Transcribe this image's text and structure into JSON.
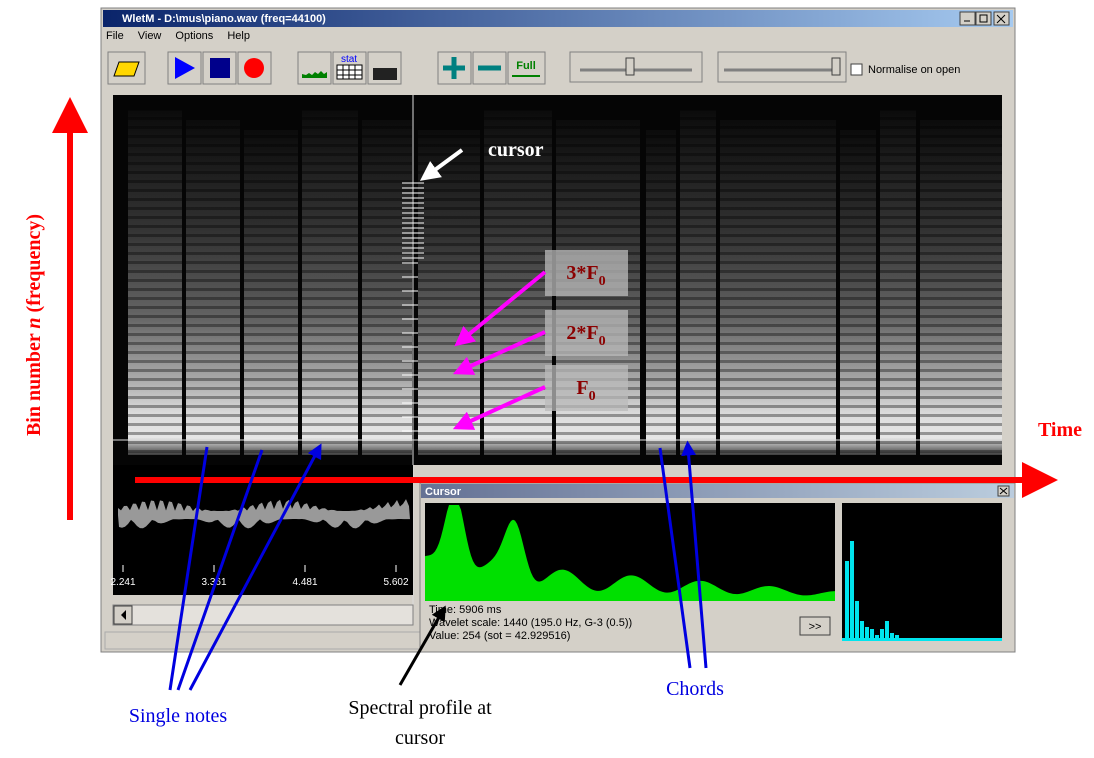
{
  "window": {
    "title": "WletM - D:\\mus\\piano.wav (freq=44100)",
    "menu": [
      "File",
      "View",
      "Options",
      "Help"
    ],
    "toolbar": {
      "stat_button": "stat",
      "full_button": "Full",
      "normalise_checkbox": "Normalise on open"
    }
  },
  "waveform": {
    "time_labels": [
      "2.241",
      "3.361",
      "4.481",
      "5.602"
    ]
  },
  "cursor_panel": {
    "title": "Cursor",
    "lines": [
      "Time: 5906 ms",
      "Wavelet scale: 1440 (195.0 Hz, G-3 (0.5))",
      "Value: 254 (sot = 42.929516)"
    ],
    "button": ">>"
  },
  "annotations": {
    "y_axis": {
      "prefix": "Bin number ",
      "variable": "n",
      "suffix": " (frequency)"
    },
    "x_axis": "Time",
    "cursor": "cursor",
    "harmonics": [
      {
        "text": "3*F",
        "sub": "0"
      },
      {
        "text": "2*F",
        "sub": "0"
      },
      {
        "text": "F",
        "sub": "0"
      }
    ],
    "single_notes": "Single notes",
    "spectral_profile": [
      "Spectral profile at",
      "cursor"
    ],
    "chords": "Chords"
  }
}
